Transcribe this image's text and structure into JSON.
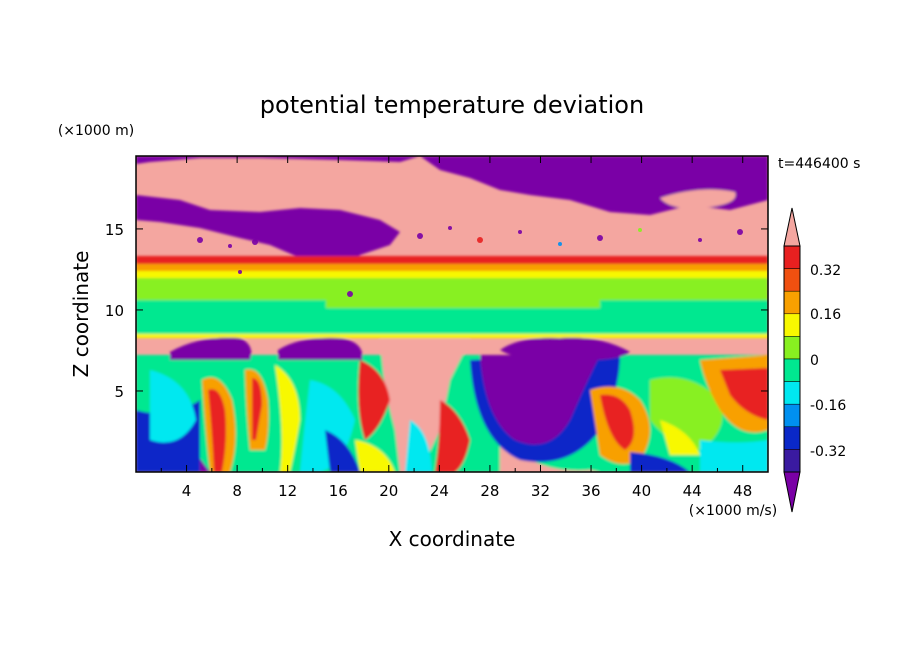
{
  "chart_data": {
    "type": "heatmap",
    "title": "potential temperature deviation",
    "xlabel": "X coordinate",
    "ylabel": "Z coordinate",
    "x_unit_label": "(×1000 m/s)",
    "y_unit_label": "(×1000 m)",
    "time_label": "t=446400 s",
    "xlim": [
      0,
      50
    ],
    "ylim": [
      0,
      19.5
    ],
    "x_ticks": [
      4,
      8,
      12,
      16,
      20,
      24,
      28,
      32,
      36,
      40,
      44,
      48
    ],
    "y_ticks": [
      5,
      10,
      15
    ],
    "colorbar": {
      "ticks": [
        "0.32",
        "0.16",
        "0",
        "-0.16",
        "-0.32"
      ],
      "levels": [
        -0.4,
        -0.32,
        -0.24,
        -0.16,
        -0.08,
        0,
        0.08,
        0.16,
        0.24,
        0.32,
        0.4
      ],
      "colors": [
        "#7a00a6",
        "#3a1aa0",
        "#0a28c8",
        "#0090f0",
        "#00e8f0",
        "#00e890",
        "#88f020",
        "#f8f800",
        "#f8a000",
        "#f05010",
        "#e82020",
        "#f4a6a0"
      ],
      "extend": "both"
    }
  }
}
